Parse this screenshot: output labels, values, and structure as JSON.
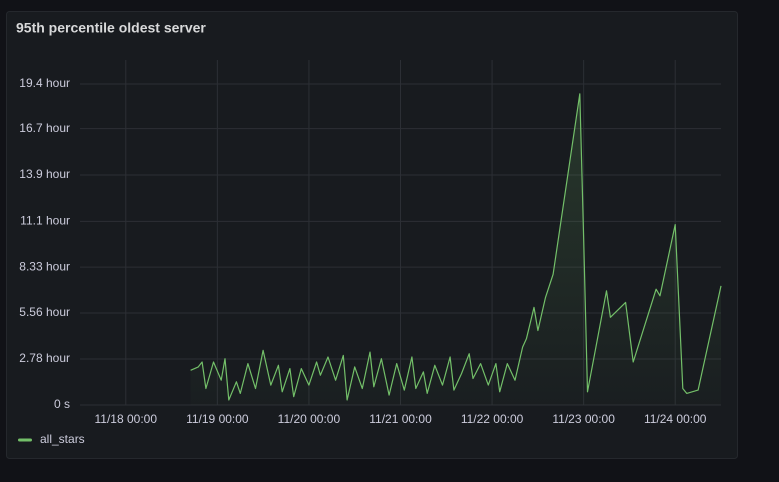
{
  "chart_data": {
    "type": "line",
    "title": "95th percentile oldest server",
    "x": [
      "11/18 17:00",
      "11/18 19:00",
      "11/18 20:00",
      "11/18 21:00",
      "11/18 23:00",
      "11/19 01:00",
      "11/19 02:00",
      "11/19 03:00",
      "11/19 05:00",
      "11/19 06:00",
      "11/19 08:00",
      "11/19 10:00",
      "11/19 12:00",
      "11/19 14:00",
      "11/19 16:00",
      "11/19 17:00",
      "11/19 19:00",
      "11/19 20:00",
      "11/19 22:00",
      "11/20 00:00",
      "11/20 02:00",
      "11/20 03:00",
      "11/20 05:00",
      "11/20 07:00",
      "11/20 09:00",
      "11/20 10:00",
      "11/20 12:00",
      "11/20 14:00",
      "11/20 16:00",
      "11/20 17:00",
      "11/20 19:00",
      "11/20 21:00",
      "11/20 23:00",
      "11/21 01:00",
      "11/21 03:00",
      "11/21 04:00",
      "11/21 06:00",
      "11/21 07:00",
      "11/21 09:00",
      "11/21 11:00",
      "11/21 13:00",
      "11/21 14:00",
      "11/21 16:00",
      "11/21 18:00",
      "11/21 19:00",
      "11/21 21:00",
      "11/21 23:00",
      "11/22 01:00",
      "11/22 02:00",
      "11/22 04:00",
      "11/22 06:00",
      "11/22 08:00",
      "11/22 09:00",
      "11/22 11:00",
      "11/22 12:00",
      "11/22 14:00",
      "11/22 16:00",
      "11/22 23:00",
      "11/23 00:00",
      "11/23 01:00",
      "11/23 06:00",
      "11/23 07:00",
      "11/23 11:00",
      "11/23 13:00",
      "11/23 19:00",
      "11/23 20:00",
      "11/24 00:00",
      "11/24 01:00",
      "11/24 02:00",
      "11/24 03:00",
      "11/24 06:00",
      "11/24 12:00"
    ],
    "series": [
      {
        "name": "all_stars",
        "color": "#73bf69",
        "values": [
          2.1,
          2.3,
          2.6,
          1.0,
          2.6,
          1.5,
          2.8,
          0.3,
          1.4,
          0.7,
          2.5,
          1.0,
          3.3,
          1.2,
          2.4,
          0.8,
          2.2,
          0.5,
          2.2,
          1.2,
          2.6,
          1.8,
          2.9,
          1.5,
          3.0,
          0.3,
          2.3,
          1.0,
          3.2,
          1.1,
          2.8,
          0.6,
          2.5,
          0.9,
          2.9,
          1.0,
          2.0,
          0.7,
          2.4,
          1.2,
          2.9,
          0.9,
          1.9,
          3.1,
          1.6,
          2.5,
          1.2,
          2.5,
          0.8,
          2.5,
          1.5,
          3.5,
          4.0,
          5.9,
          4.5,
          6.5,
          7.9,
          18.8,
          10.2,
          0.8,
          6.9,
          5.3,
          6.2,
          2.6,
          7.0,
          6.6,
          10.9,
          6.0,
          1.0,
          0.7,
          0.9,
          7.2
        ]
      }
    ],
    "xlim": [
      "11/17 12:00",
      "11/24 12:00"
    ],
    "xticks": [
      "11/18 00:00",
      "11/19 00:00",
      "11/20 00:00",
      "11/21 00:00",
      "11/22 00:00",
      "11/23 00:00",
      "11/24 00:00"
    ],
    "ylim": [
      0,
      20.85
    ],
    "yticks": [
      {
        "value": 0,
        "label": "0 s"
      },
      {
        "value": 2.78,
        "label": "2.78 hour"
      },
      {
        "value": 5.56,
        "label": "5.56 hour"
      },
      {
        "value": 8.33,
        "label": "8.33 hour"
      },
      {
        "value": 11.1,
        "label": "11.1 hour"
      },
      {
        "value": 13.9,
        "label": "13.9 hour"
      },
      {
        "value": 16.7,
        "label": "16.7 hour"
      },
      {
        "value": 19.4,
        "label": "19.4 hour"
      }
    ],
    "grid": true,
    "legend": "bottom-left"
  }
}
